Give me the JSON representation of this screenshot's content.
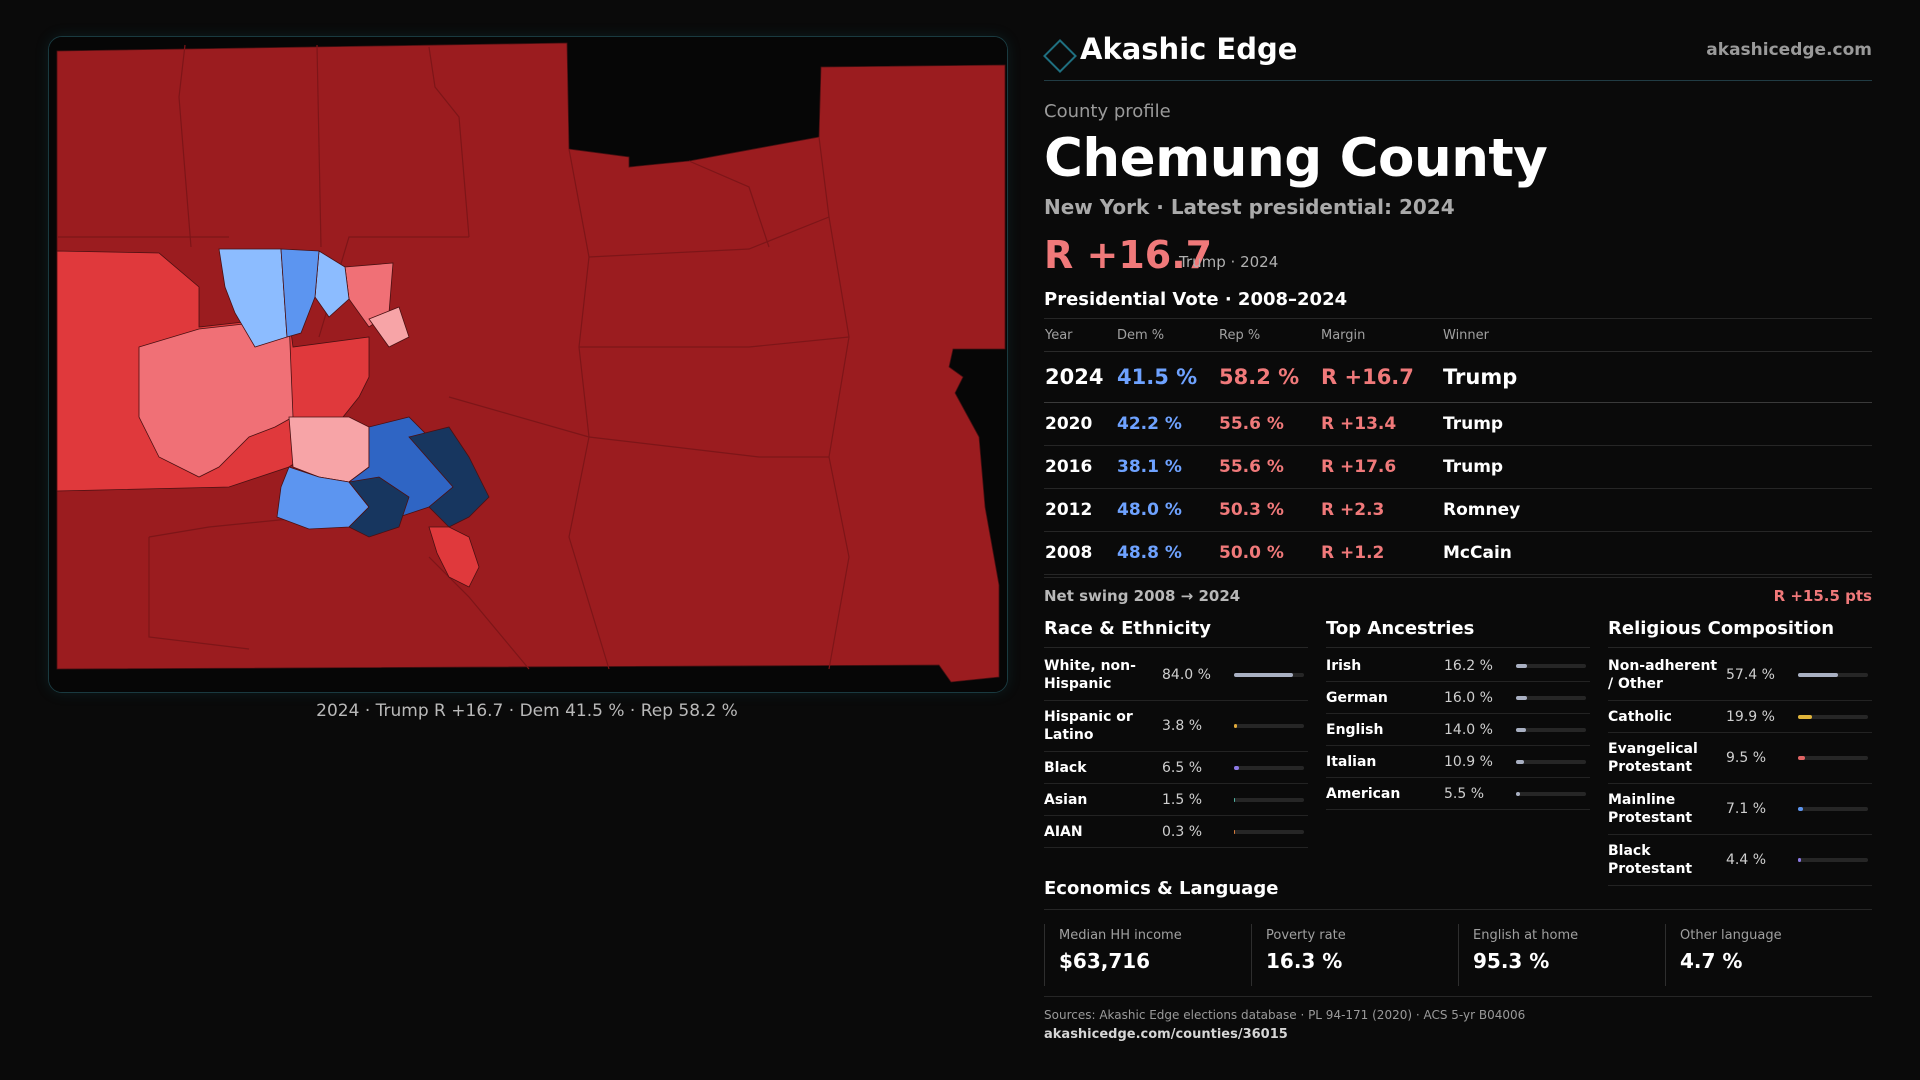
{
  "brand": {
    "name": "Akashic Edge",
    "site": "akashicedge.com"
  },
  "profile": {
    "eyebrow": "County profile",
    "county": "Chemung County",
    "subline": "New York  · Latest presidential: 2024",
    "margin": "R +16.7",
    "margin_note": "Trump · 2024"
  },
  "map": {
    "caption": "2024 · Trump R +16.7 · Dem 41.5 % · Rep 58.2 %",
    "colors": {
      "safe_r": "#9b1c1f",
      "likely_r": "#e0393c",
      "lean_r": "#f07076",
      "tilt_r": "#f7a4a7",
      "tilt_d": "#8cbcff",
      "lean_d": "#5c95f0",
      "likely_d": "#2f65c4",
      "safe_d": "#17365f",
      "background": "#060606"
    }
  },
  "votes": {
    "title": "Presidential Vote · 2008–2024",
    "headers": {
      "year": "Year",
      "dem": "Dem %",
      "rep": "Rep %",
      "margin": "Margin",
      "winner": "Winner"
    },
    "rows": [
      {
        "year": "2024",
        "dem": "41.5 %",
        "rep": "58.2 %",
        "margin": "R +16.7",
        "winner": "Trump"
      },
      {
        "year": "2020",
        "dem": "42.2 %",
        "rep": "55.6 %",
        "margin": "R +13.4",
        "winner": "Trump"
      },
      {
        "year": "2016",
        "dem": "38.1 %",
        "rep": "55.6 %",
        "margin": "R +17.6",
        "winner": "Trump"
      },
      {
        "year": "2012",
        "dem": "48.0 %",
        "rep": "50.3 %",
        "margin": "R +2.3",
        "winner": "Romney"
      },
      {
        "year": "2008",
        "dem": "48.8 %",
        "rep": "50.0 %",
        "margin": "R +1.2",
        "winner": "McCain"
      }
    ],
    "swing_label": "Net swing 2008 → 2024",
    "swing_value": "R +15.5 pts"
  },
  "race": {
    "title": "Race & Ethnicity",
    "rows": [
      {
        "label": "White, non-Hispanic",
        "value": "84.0 %",
        "pct": 84.0,
        "color": "#a9b0c2"
      },
      {
        "label": "Hispanic or Latino",
        "value": "3.8 %",
        "pct": 3.8,
        "color": "#e0a93a"
      },
      {
        "label": "Black",
        "value": "6.5 %",
        "pct": 6.5,
        "color": "#8d7ae6"
      },
      {
        "label": "Asian",
        "value": "1.5 %",
        "pct": 1.5,
        "color": "#4fb0a0"
      },
      {
        "label": "AIAN",
        "value": "0.3 %",
        "pct": 0.3,
        "color": "#d47a3a"
      }
    ]
  },
  "ancestry": {
    "title": "Top Ancestries",
    "rows": [
      {
        "label": "Irish",
        "value": "16.2 %",
        "pct": 16.2,
        "color": "#a9b0c2"
      },
      {
        "label": "German",
        "value": "16.0 %",
        "pct": 16.0,
        "color": "#a9b0c2"
      },
      {
        "label": "English",
        "value": "14.0 %",
        "pct": 14.0,
        "color": "#a9b0c2"
      },
      {
        "label": "Italian",
        "value": "10.9 %",
        "pct": 10.9,
        "color": "#a9b0c2"
      },
      {
        "label": "American",
        "value": "5.5 %",
        "pct": 5.5,
        "color": "#a9b0c2"
      }
    ]
  },
  "religion": {
    "title": "Religious Composition",
    "rows": [
      {
        "label": "Non-adherent / Other",
        "value": "57.4 %",
        "pct": 57.4,
        "color": "#a9b0c2"
      },
      {
        "label": "Catholic",
        "value": "19.9 %",
        "pct": 19.9,
        "color": "#e0b43a"
      },
      {
        "label": "Evangelical Protestant",
        "value": "9.5 %",
        "pct": 9.5,
        "color": "#e06464"
      },
      {
        "label": "Mainline Protestant",
        "value": "7.1 %",
        "pct": 7.1,
        "color": "#5c95f0"
      },
      {
        "label": "Black Protestant",
        "value": "4.4 %",
        "pct": 4.4,
        "color": "#8d7ae6"
      }
    ]
  },
  "economics": {
    "title": "Economics & Language",
    "cells": [
      {
        "label": "Median HH income",
        "value": "$63,716"
      },
      {
        "label": "Poverty rate",
        "value": "16.3 %"
      },
      {
        "label": "English at home",
        "value": "95.3 %"
      },
      {
        "label": "Other language",
        "value": "4.7 %"
      }
    ]
  },
  "sources": {
    "text": "Sources: Akashic Edge elections database · PL 94-171 (2020) · ACS 5-yr B04006",
    "url": "akashicedge.com/counties/36015"
  }
}
